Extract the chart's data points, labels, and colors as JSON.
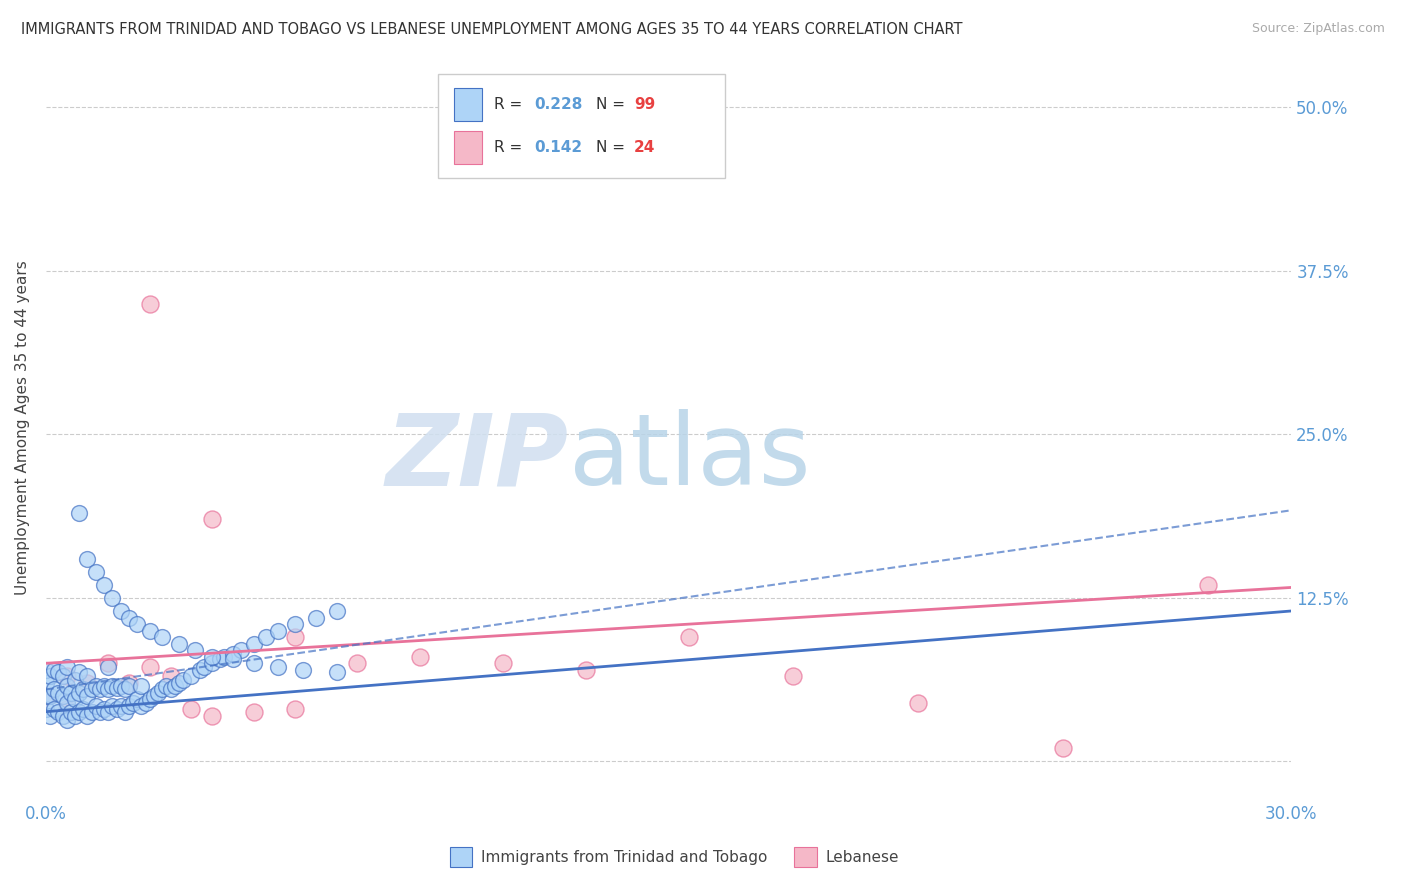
{
  "title": "IMMIGRANTS FROM TRINIDAD AND TOBAGO VS LEBANESE UNEMPLOYMENT AMONG AGES 35 TO 44 YEARS CORRELATION CHART",
  "source": "Source: ZipAtlas.com",
  "ylabel": "Unemployment Among Ages 35 to 44 years",
  "y_ticks": [
    0.0,
    0.125,
    0.25,
    0.375,
    0.5
  ],
  "y_tick_labels_right": [
    "",
    "12.5%",
    "25.0%",
    "37.5%",
    "50.0%"
  ],
  "x_min": 0.0,
  "x_max": 0.3,
  "y_min": -0.03,
  "y_max": 0.54,
  "legend1_color_fill": "#aed4f7",
  "legend2_color_fill": "#f5b8c8",
  "blue_color": "#4472c4",
  "pink_color": "#e8729a",
  "tick_color": "#5b9bd5",
  "blue_line": {
    "x0": 0.0,
    "y0": 0.038,
    "x1": 0.3,
    "y1": 0.115
  },
  "pink_line": {
    "x0": 0.0,
    "y0": 0.075,
    "x1": 0.3,
    "y1": 0.133
  },
  "blue_dash_line": {
    "x0": 0.0,
    "y0": 0.055,
    "x1": 0.3,
    "y1": 0.192
  },
  "watermark_zip": "ZIP",
  "watermark_atlas": "atlas",
  "bottom_legend_label1": "Immigrants from Trinidad and Tobago",
  "bottom_legend_label2": "Lebanese",
  "scatter_blue_x": [
    0.0,
    0.0,
    0.0,
    0.0,
    0.001,
    0.001,
    0.001,
    0.002,
    0.002,
    0.002,
    0.003,
    0.003,
    0.003,
    0.004,
    0.004,
    0.004,
    0.005,
    0.005,
    0.005,
    0.005,
    0.006,
    0.006,
    0.007,
    0.007,
    0.007,
    0.008,
    0.008,
    0.008,
    0.009,
    0.009,
    0.01,
    0.01,
    0.01,
    0.011,
    0.011,
    0.012,
    0.012,
    0.013,
    0.013,
    0.014,
    0.014,
    0.015,
    0.015,
    0.015,
    0.016,
    0.016,
    0.017,
    0.017,
    0.018,
    0.018,
    0.019,
    0.019,
    0.02,
    0.02,
    0.021,
    0.022,
    0.023,
    0.023,
    0.024,
    0.025,
    0.026,
    0.027,
    0.028,
    0.029,
    0.03,
    0.031,
    0.032,
    0.033,
    0.035,
    0.037,
    0.038,
    0.04,
    0.042,
    0.043,
    0.045,
    0.047,
    0.05,
    0.053,
    0.056,
    0.06,
    0.065,
    0.07,
    0.008,
    0.01,
    0.012,
    0.014,
    0.016,
    0.018,
    0.02,
    0.022,
    0.025,
    0.028,
    0.032,
    0.036,
    0.04,
    0.045,
    0.05,
    0.056,
    0.062,
    0.07
  ],
  "scatter_blue_y": [
    0.04,
    0.05,
    0.06,
    0.07,
    0.035,
    0.05,
    0.065,
    0.04,
    0.055,
    0.07,
    0.038,
    0.052,
    0.068,
    0.035,
    0.05,
    0.065,
    0.032,
    0.045,
    0.058,
    0.072,
    0.038,
    0.052,
    0.035,
    0.048,
    0.062,
    0.038,
    0.052,
    0.068,
    0.04,
    0.055,
    0.035,
    0.05,
    0.065,
    0.038,
    0.055,
    0.042,
    0.058,
    0.038,
    0.055,
    0.04,
    0.058,
    0.038,
    0.055,
    0.072,
    0.042,
    0.058,
    0.04,
    0.056,
    0.042,
    0.058,
    0.038,
    0.055,
    0.042,
    0.058,
    0.045,
    0.048,
    0.042,
    0.058,
    0.045,
    0.048,
    0.05,
    0.052,
    0.055,
    0.058,
    0.055,
    0.058,
    0.06,
    0.062,
    0.065,
    0.07,
    0.072,
    0.075,
    0.078,
    0.08,
    0.082,
    0.085,
    0.09,
    0.095,
    0.1,
    0.105,
    0.11,
    0.115,
    0.19,
    0.155,
    0.145,
    0.135,
    0.125,
    0.115,
    0.11,
    0.105,
    0.1,
    0.095,
    0.09,
    0.085,
    0.08,
    0.078,
    0.075,
    0.072,
    0.07,
    0.068
  ],
  "scatter_pink_x": [
    0.0,
    0.005,
    0.01,
    0.015,
    0.02,
    0.025,
    0.03,
    0.035,
    0.04,
    0.05,
    0.06,
    0.075,
    0.09,
    0.11,
    0.13,
    0.155,
    0.18,
    0.21,
    0.245,
    0.28,
    0.005,
    0.025,
    0.04,
    0.06
  ],
  "scatter_pink_y": [
    0.05,
    0.04,
    0.06,
    0.075,
    0.06,
    0.072,
    0.065,
    0.04,
    0.035,
    0.038,
    0.04,
    0.075,
    0.08,
    0.075,
    0.07,
    0.095,
    0.065,
    0.045,
    0.01,
    0.135,
    0.065,
    0.35,
    0.185,
    0.095
  ]
}
